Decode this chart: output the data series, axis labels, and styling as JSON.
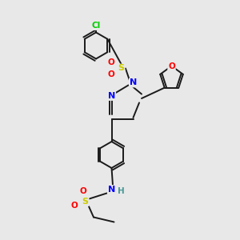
{
  "bg_color": "#e8e8e8",
  "bond_color": "#1a1a1a",
  "atom_colors": {
    "N": "#0000ff",
    "O": "#ff0000",
    "S": "#cccc00",
    "Cl": "#00cc00",
    "H": "#4a9999",
    "C": "#1a1a1a"
  },
  "ring_r": 0.55,
  "lw": 1.4
}
